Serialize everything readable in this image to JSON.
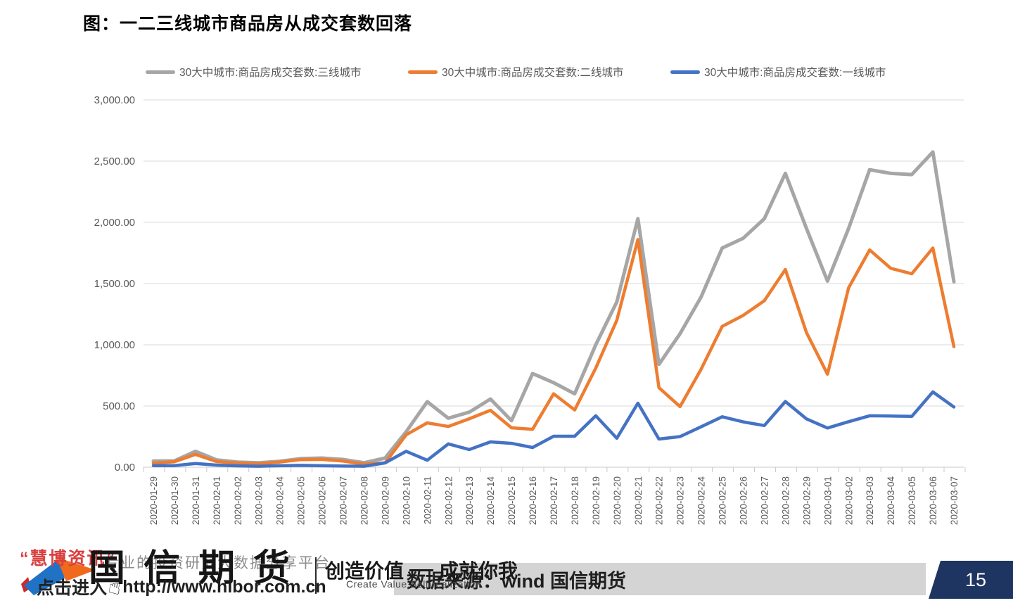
{
  "title": "图：一二三线城市商品房从成交套数回落",
  "chart_data": {
    "type": "line",
    "title": "图：一二三线城市商品房从成交套数回落",
    "categories": [
      "2020-01-29",
      "2020-01-30",
      "2020-01-31",
      "2020-02-01",
      "2020-02-02",
      "2020-02-03",
      "2020-02-04",
      "2020-02-05",
      "2020-02-06",
      "2020-02-07",
      "2020-02-08",
      "2020-02-09",
      "2020-02-10",
      "2020-02-11",
      "2020-02-12",
      "2020-02-13",
      "2020-02-14",
      "2020-02-15",
      "2020-02-16",
      "2020-02-17",
      "2020-02-18",
      "2020-02-19",
      "2020-02-20",
      "2020-02-21",
      "2020-02-22",
      "2020-02-23",
      "2020-02-24",
      "2020-02-25",
      "2020-02-26",
      "2020-02-27",
      "2020-02-28",
      "2020-02-29",
      "2020-03-01",
      "2020-03-02",
      "2020-03-03",
      "2020-03-04",
      "2020-03-05",
      "2020-03-06",
      "2020-03-07"
    ],
    "series": [
      {
        "name": "30大中城市:商品房成交套数:三线城市",
        "color": "#A6A6A6",
        "values": [
          50,
          52,
          130,
          60,
          42,
          36,
          48,
          70,
          75,
          63,
          36,
          75,
          290,
          535,
          400,
          450,
          557,
          380,
          765,
          690,
          600,
          1000,
          1350,
          2030,
          840,
          1090,
          1390,
          1790,
          1870,
          2030,
          2400,
          1950,
          1520,
          1950,
          2430,
          2400,
          2390,
          2575,
          1515
        ]
      },
      {
        "name": "30大中城市:商品房成交套数:二线城市",
        "color": "#ED7D31",
        "values": [
          33,
          45,
          105,
          46,
          34,
          28,
          42,
          62,
          64,
          50,
          25,
          35,
          265,
          362,
          333,
          396,
          465,
          322,
          310,
          600,
          468,
          810,
          1200,
          1860,
          650,
          495,
          800,
          1150,
          1240,
          1360,
          1615,
          1100,
          760,
          1465,
          1775,
          1625,
          1580,
          1790,
          985
        ]
      },
      {
        "name": "30大中城市:商品房成交套数:一线城市",
        "color": "#4472C4",
        "values": [
          13,
          13,
          30,
          17,
          11,
          8,
          12,
          15,
          12,
          9,
          8,
          35,
          130,
          57,
          190,
          144,
          207,
          195,
          161,
          253,
          253,
          420,
          236,
          523,
          230,
          250,
          330,
          412,
          370,
          340,
          537,
          395,
          320,
          372,
          420,
          418,
          415,
          615,
          492
        ]
      }
    ],
    "ylim": [
      0,
      3000
    ],
    "y_step": 500,
    "y_tick_labels": [
      "0.00",
      "500.00",
      "1,000.00",
      "1,500.00",
      "2,000.00",
      "2,500.00",
      "3,000.00"
    ],
    "grid": "horizontal",
    "legend_position": "top",
    "axis_color": "#C9C9C9",
    "grid_color": "#D9D9D9",
    "label_color": "#595959"
  },
  "watermark": {
    "quote": "“慧博资讯”",
    "tagline": "专业的投资研究大数据分享平台",
    "company": "国信期货",
    "slogan_left": "创造价值",
    "slogan_right": "成就你我",
    "slogan_en": "Create Value,Self-realization",
    "click_text": "点击进入",
    "hand_icon": "☝",
    "url": "http://www.hibor.com.cn"
  },
  "footer": {
    "source_text": "数据来源：wind 国信期货",
    "page_number": "15"
  }
}
